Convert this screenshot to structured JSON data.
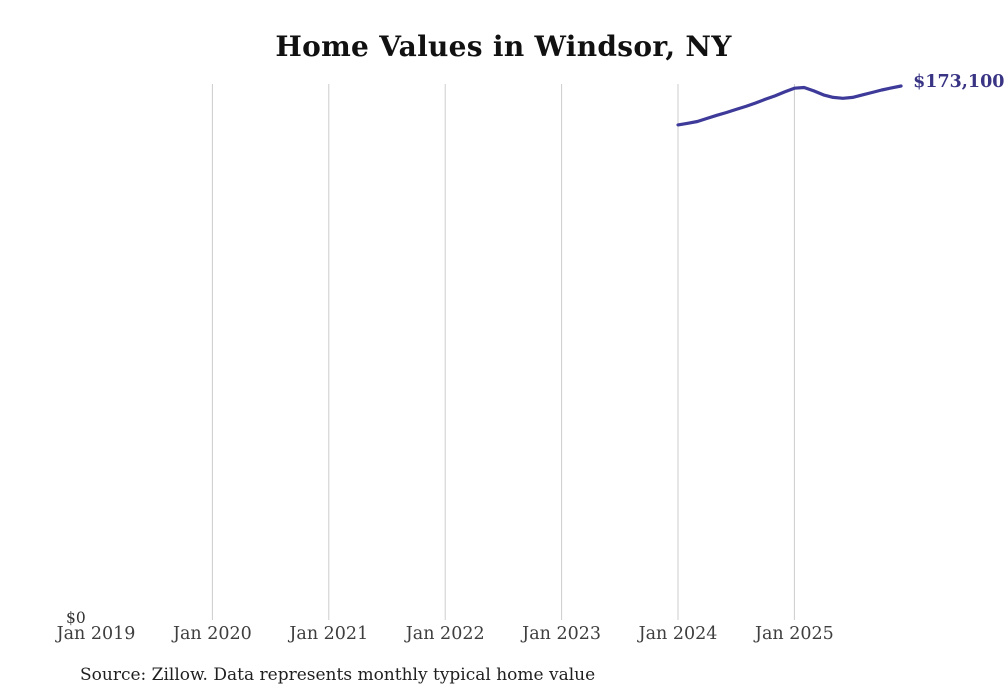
{
  "chart_data": {
    "type": "line",
    "title": "Home Values in Windsor, NY",
    "source": "Source: Zillow. Data represents monthly typical home value",
    "end_label": {
      "text": "$173,100",
      "color": "#393584"
    },
    "y_axis": {
      "zero_label": "$0",
      "min": 0
    },
    "x_axis": {
      "ticks": [
        {
          "label": "Jan 2019",
          "month": "2019-01",
          "gridline": false
        },
        {
          "label": "Jan 2020",
          "month": "2020-01",
          "gridline": true
        },
        {
          "label": "Jan 2021",
          "month": "2021-01",
          "gridline": true
        },
        {
          "label": "Jan 2022",
          "month": "2022-01",
          "gridline": true
        },
        {
          "label": "Jan 2023",
          "month": "2023-01",
          "gridline": true
        },
        {
          "label": "Jan 2024",
          "month": "2024-01",
          "gridline": true
        },
        {
          "label": "Jan 2025",
          "month": "2025-01",
          "gridline": true
        }
      ]
    },
    "series": [
      {
        "name": "Monthly typical home value",
        "color": "#3d3a99",
        "points": [
          {
            "month": "2024-01",
            "value": 160500
          },
          {
            "month": "2024-02",
            "value": 161000
          },
          {
            "month": "2024-03",
            "value": 161600
          },
          {
            "month": "2024-04",
            "value": 162600
          },
          {
            "month": "2024-05",
            "value": 163600
          },
          {
            "month": "2024-06",
            "value": 164500
          },
          {
            "month": "2024-07",
            "value": 165500
          },
          {
            "month": "2024-08",
            "value": 166500
          },
          {
            "month": "2024-09",
            "value": 167600
          },
          {
            "month": "2024-10",
            "value": 168800
          },
          {
            "month": "2024-11",
            "value": 169900
          },
          {
            "month": "2024-12",
            "value": 171200
          },
          {
            "month": "2025-01",
            "value": 172400
          },
          {
            "month": "2025-02",
            "value": 172600
          },
          {
            "month": "2025-03",
            "value": 171500
          },
          {
            "month": "2025-04",
            "value": 170200
          },
          {
            "month": "2025-05",
            "value": 169400
          },
          {
            "month": "2025-06",
            "value": 169100
          },
          {
            "month": "2025-07",
            "value": 169400
          },
          {
            "month": "2025-08",
            "value": 170200
          },
          {
            "month": "2025-09",
            "value": 171000
          },
          {
            "month": "2025-10",
            "value": 171800
          },
          {
            "month": "2025-11",
            "value": 172500
          },
          {
            "month": "2025-12",
            "value": 173100
          }
        ]
      }
    ],
    "colors": {
      "gridline": "#cccccc",
      "title": "#111111",
      "axis_text": "#3e3e3e",
      "source_text": "#1f1f1f"
    }
  }
}
